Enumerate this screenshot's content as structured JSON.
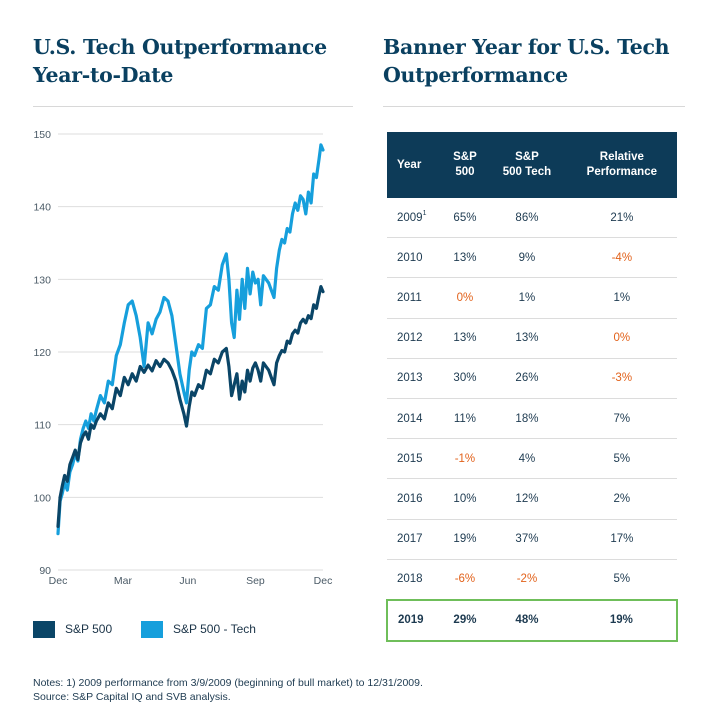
{
  "left_title": "U.S. Tech Outperformance Year-to-Date",
  "right_title": "Banner Year for U.S. Tech Outperformance",
  "colors": {
    "sp500": "#0a4567",
    "tech": "#169fdc",
    "negative": "#e2621b",
    "header_bg": "#0d3b58",
    "highlight": "#6fbe5a"
  },
  "chart_data": {
    "type": "line",
    "title": "U.S. Tech Outperformance Year-to-Date",
    "xlabel": "",
    "ylabel": "",
    "x_range": [
      0,
      100
    ],
    "ylim": [
      90,
      150
    ],
    "y_ticks": [
      90,
      100,
      110,
      120,
      130,
      140,
      150
    ],
    "x_tick_labels": [
      {
        "label": "Dec",
        "x": 0
      },
      {
        "label": "Mar",
        "x": 24.5
      },
      {
        "label": "Jun",
        "x": 49
      },
      {
        "label": "Sep",
        "x": 74.5
      },
      {
        "label": "Dec",
        "x": 100
      }
    ],
    "grid": "horizontal",
    "legend_position": "bottom-left",
    "series": [
      {
        "name": "S&P 500",
        "x": [
          0,
          0.8,
          1.6,
          2.5,
          3.5,
          4.5,
          5.5,
          6.5,
          7.5,
          8.5,
          9.5,
          10.5,
          11.5,
          12.5,
          13.5,
          14.5,
          16,
          17.5,
          19,
          20.5,
          22,
          23.5,
          25,
          26.5,
          28,
          29.5,
          31,
          32.5,
          34,
          35.5,
          37,
          38.5,
          40,
          41.5,
          43,
          44.5,
          46,
          47.5,
          48.5,
          49.5,
          50.5,
          51.5,
          53,
          54.5,
          56,
          57.5,
          59,
          60.5,
          62,
          63.5,
          64.5,
          65.5,
          66.5,
          67.5,
          68.5,
          69.5,
          70.5,
          71.5,
          72.5,
          73.5,
          74.5,
          75.5,
          76.5,
          77.5,
          78.5,
          79.5,
          80.5,
          81.5,
          82.5,
          83.5,
          84.5,
          85.5,
          86.5,
          87.5,
          88.5,
          89.5,
          90.5,
          91.5,
          92.5,
          93.5,
          94.5,
          95.5,
          96.5,
          97.5,
          98.5,
          99.2,
          100
        ],
        "values": [
          96.0,
          100.0,
          101.5,
          103.0,
          102.2,
          104.5,
          105.5,
          106.5,
          105.2,
          107.5,
          108.5,
          109.0,
          108.0,
          110.0,
          109.5,
          110.5,
          111.5,
          110.8,
          113.0,
          112.2,
          115.0,
          114.0,
          116.5,
          115.5,
          117.0,
          116.0,
          118.0,
          117.2,
          118.2,
          117.4,
          118.8,
          118.0,
          119.0,
          118.5,
          117.5,
          116.0,
          113.5,
          111.5,
          109.8,
          112.5,
          114.5,
          114.0,
          115.5,
          115.0,
          117.5,
          117.0,
          119.0,
          118.5,
          120.0,
          120.5,
          118.0,
          114.0,
          115.5,
          117.0,
          113.5,
          116.0,
          114.5,
          117.5,
          116.0,
          117.8,
          118.5,
          117.5,
          116.0,
          118.5,
          118.0,
          117.5,
          116.5,
          115.5,
          118.5,
          119.5,
          120.2,
          120.0,
          121.5,
          121.2,
          122.5,
          123.0,
          122.6,
          124.0,
          124.5,
          124.0,
          125.0,
          124.6,
          126.5,
          126.0,
          127.8,
          129.0,
          128.3
        ]
      },
      {
        "name": "S&P 500 - Tech",
        "x": [
          0,
          0.8,
          1.6,
          2.5,
          3.5,
          4.5,
          5.5,
          6.5,
          7.5,
          8.5,
          9.5,
          10.5,
          11.5,
          12.5,
          13.5,
          14.5,
          16,
          17.5,
          19,
          20.5,
          22,
          23.5,
          25,
          26.5,
          28,
          29.5,
          31,
          32.5,
          34,
          35.5,
          37,
          38.5,
          40,
          41.5,
          43,
          44.5,
          46,
          47.5,
          48.5,
          49.5,
          50.5,
          51.5,
          53,
          54.5,
          56,
          57.5,
          59,
          60.5,
          62,
          63.5,
          64.5,
          65.5,
          66.5,
          67.5,
          68.5,
          69.5,
          70.5,
          71.5,
          72.5,
          73.5,
          74.5,
          75.5,
          76.5,
          77.5,
          78.5,
          79.5,
          80.5,
          81.5,
          82.5,
          83.5,
          84.5,
          85.5,
          86.5,
          87.5,
          88.5,
          89.5,
          90.5,
          91.5,
          92.5,
          93.5,
          94.5,
          95.5,
          96.5,
          97.5,
          98.5,
          99.2,
          100
        ],
        "values": [
          95.0,
          99.5,
          100.5,
          102.0,
          101.0,
          103.5,
          104.5,
          106.0,
          105.0,
          108.0,
          109.5,
          110.5,
          109.5,
          111.5,
          110.5,
          112.0,
          114.0,
          113.0,
          116.0,
          115.5,
          119.5,
          121.0,
          124.0,
          126.5,
          127.0,
          125.0,
          122.0,
          118.0,
          124.0,
          122.5,
          124.5,
          125.5,
          127.5,
          127.0,
          125.0,
          121.0,
          117.0,
          114.5,
          113.0,
          117.5,
          120.0,
          119.5,
          121.0,
          120.5,
          126.0,
          126.5,
          129.0,
          128.5,
          132.0,
          133.5,
          130.0,
          124.0,
          122.0,
          128.5,
          124.5,
          130.0,
          126.0,
          131.5,
          128.0,
          131.0,
          129.5,
          130.0,
          126.5,
          130.5,
          130.0,
          129.5,
          128.5,
          127.5,
          131.5,
          134.0,
          135.5,
          135.0,
          137.0,
          136.5,
          139.0,
          140.5,
          139.5,
          141.5,
          141.0,
          139.0,
          142.0,
          140.5,
          144.5,
          144.0,
          146.5,
          148.5,
          147.8
        ]
      }
    ]
  },
  "legend": [
    {
      "label": "S&P 500"
    },
    {
      "label": "S&P 500 - Tech"
    }
  ],
  "table": {
    "headers": [
      "Year",
      "S&P\n500",
      "S&P\n500 Tech",
      "Relative\nPerformance"
    ],
    "rows": [
      {
        "year": "2009",
        "footnote": "1",
        "sp500": "65%",
        "tech": "86%",
        "relative": "21%"
      },
      {
        "year": "2010",
        "sp500": "13%",
        "tech": "9%",
        "relative": "-4%"
      },
      {
        "year": "2011",
        "sp500": "0%",
        "tech": "1%",
        "relative": "1%"
      },
      {
        "year": "2012",
        "sp500": "13%",
        "tech": "13%",
        "relative": "0%"
      },
      {
        "year": "2013",
        "sp500": "30%",
        "tech": "26%",
        "relative": "-3%"
      },
      {
        "year": "2014",
        "sp500": "11%",
        "tech": "18%",
        "relative": "7%"
      },
      {
        "year": "2015",
        "sp500": "-1%",
        "tech": "4%",
        "relative": "5%"
      },
      {
        "year": "2016",
        "sp500": "10%",
        "tech": "12%",
        "relative": "2%"
      },
      {
        "year": "2017",
        "sp500": "19%",
        "tech": "37%",
        "relative": "17%"
      },
      {
        "year": "2018",
        "sp500": "-6%",
        "tech": "-2%",
        "relative": "5%"
      },
      {
        "year": "2019",
        "sp500": "29%",
        "tech": "48%",
        "relative": "19%",
        "highlight": true
      }
    ],
    "negative_cells": [
      {
        "row": 1,
        "col": "relative"
      },
      {
        "row": 2,
        "col": "sp500"
      },
      {
        "row": 3,
        "col": "relative"
      },
      {
        "row": 4,
        "col": "relative"
      },
      {
        "row": 6,
        "col": "sp500"
      },
      {
        "row": 9,
        "col": "sp500"
      },
      {
        "row": 9,
        "col": "tech"
      }
    ]
  },
  "notes": [
    "Notes: 1) 2009 performance from 3/9/2009 (beginning of bull market) to 12/31/2009.",
    "Source: S&P Capital IQ and SVB analysis."
  ]
}
